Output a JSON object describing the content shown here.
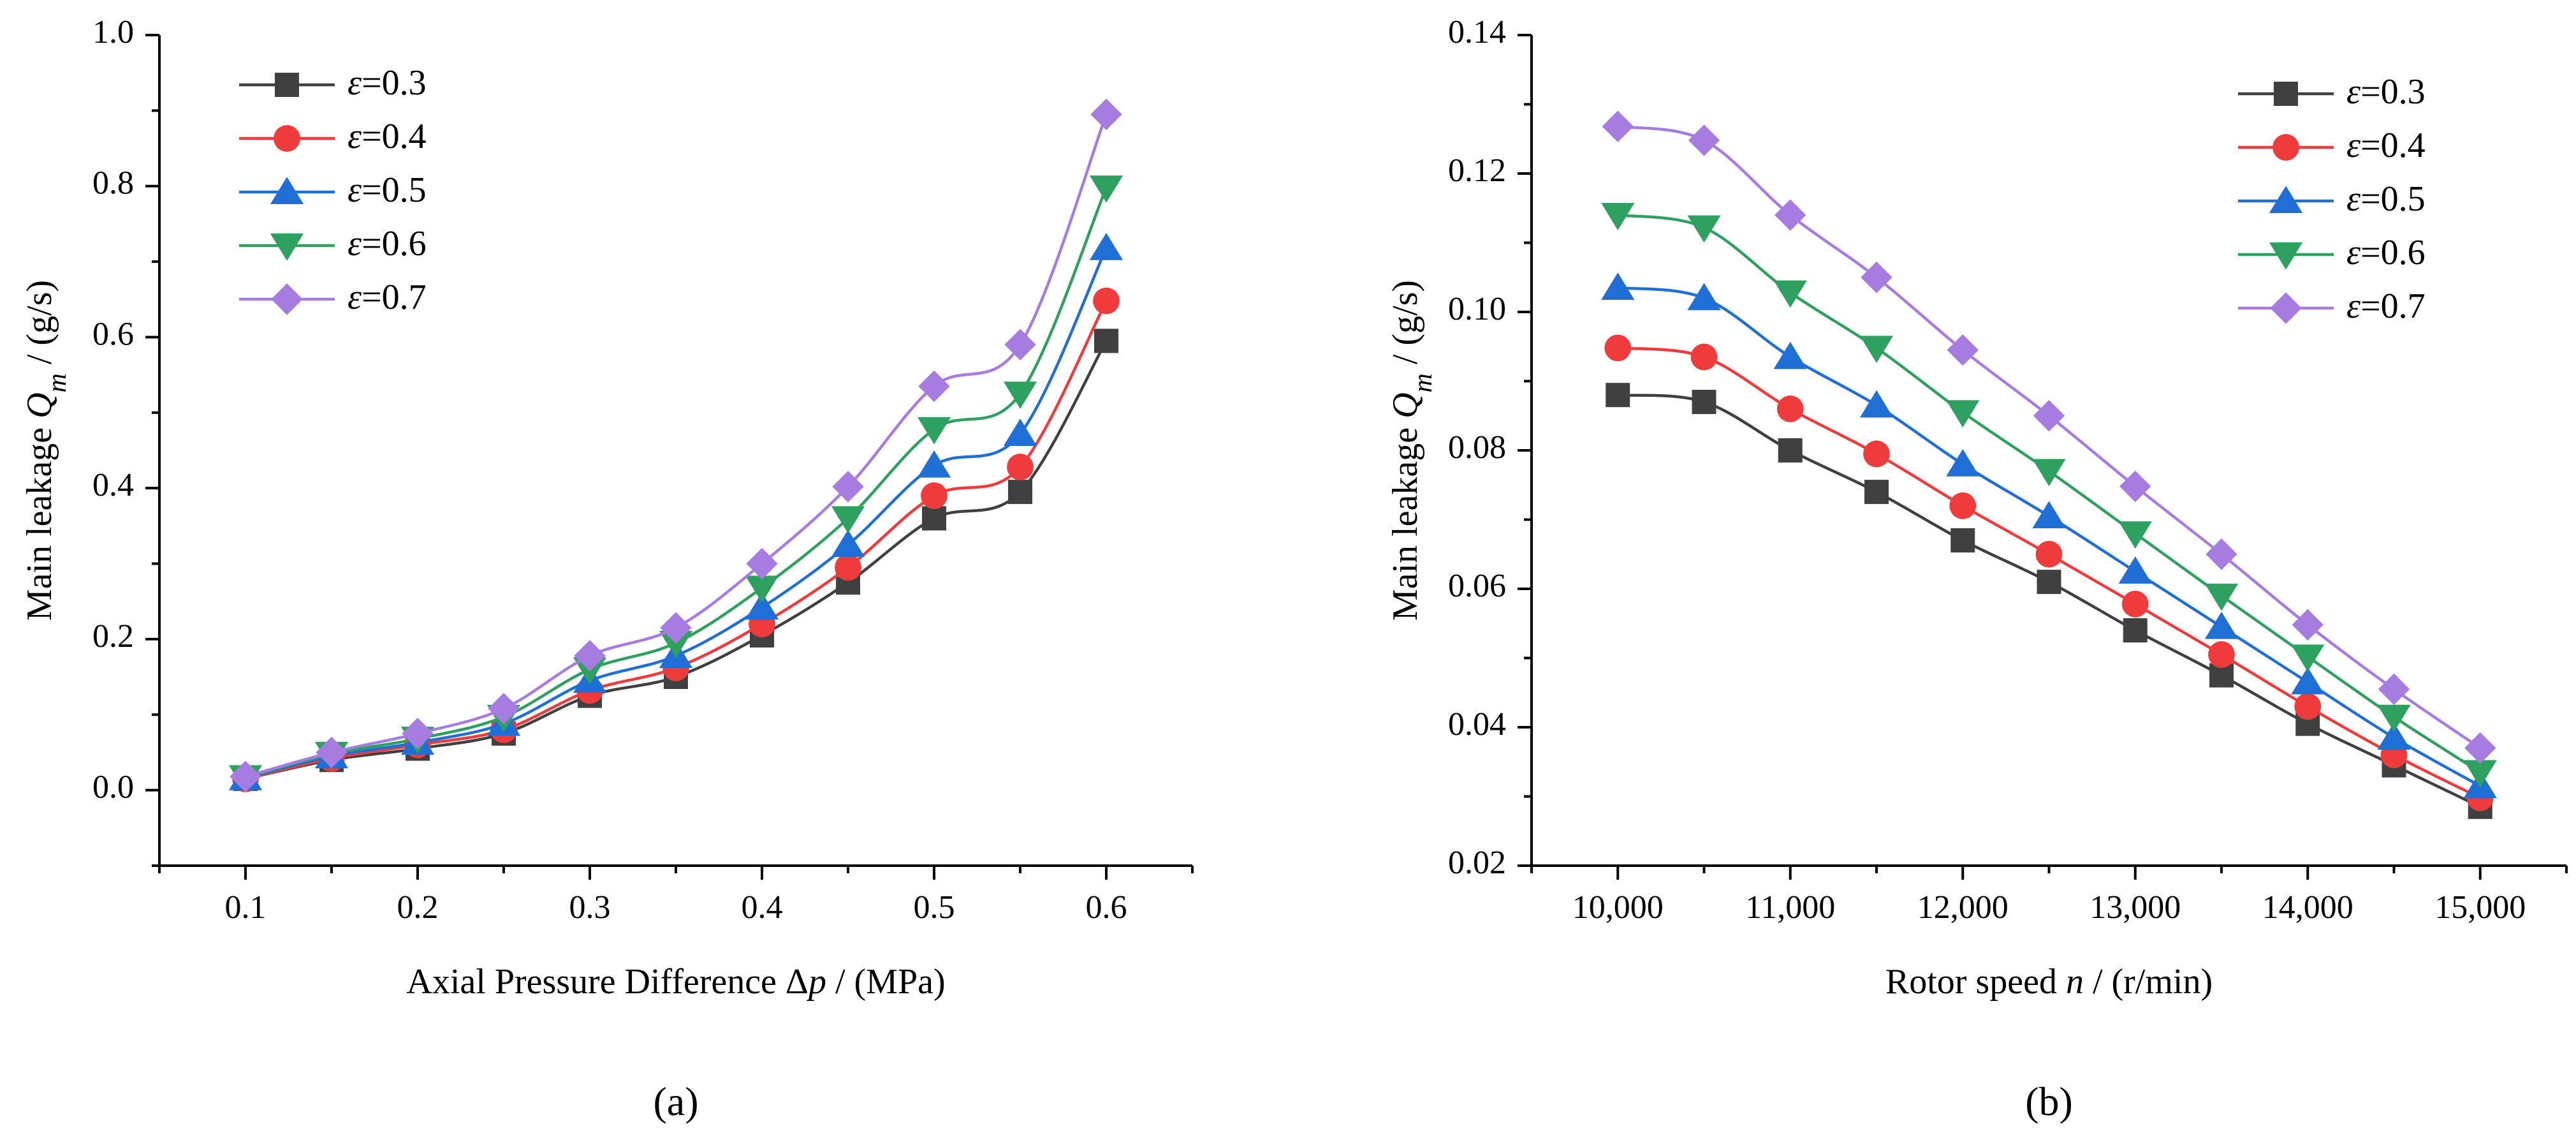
{
  "figure": {
    "series_colors": {
      "ε=0.3": "#404040",
      "ε=0.4": "#ef3b3b",
      "ε=0.5": "#1f6fd6",
      "ε=0.6": "#2ea05f",
      "ε=0.7": "#a77ce0"
    },
    "series_markers": {
      "ε=0.3": "square",
      "ε=0.4": "circle",
      "ε=0.5": "triangle-up",
      "ε=0.6": "triangle-down",
      "ε=0.7": "diamond"
    }
  },
  "chart_data": [
    {
      "id": "a",
      "type": "line",
      "panel_label": "(a)",
      "title": "",
      "xlabel": "Axial Pressure Difference Δp / (MPa)",
      "ylabel": "Main leakage Qm / (g/s)",
      "xlim": [
        0.05,
        0.65
      ],
      "ylim": [
        -0.1,
        1.0
      ],
      "xticks": [
        0.1,
        0.2,
        0.3,
        0.4,
        0.5,
        0.6
      ],
      "xtick_labels": [
        "0.1",
        "0.2",
        "0.3",
        "0.4",
        "0.5",
        "0.6"
      ],
      "yticks": [
        0.0,
        0.2,
        0.4,
        0.6,
        0.8,
        1.0
      ],
      "ytick_labels": [
        "0.0",
        "0.2",
        "0.4",
        "0.6",
        "0.8",
        "1.0"
      ],
      "legend_position": "top-left",
      "grid": false,
      "x": [
        0.1,
        0.15,
        0.2,
        0.25,
        0.3,
        0.35,
        0.4,
        0.45,
        0.5,
        0.55,
        0.6
      ],
      "series": [
        {
          "name": "ε=0.3",
          "values": [
            0.015,
            0.04,
            0.055,
            0.075,
            0.125,
            0.15,
            0.205,
            0.275,
            0.36,
            0.395,
            0.595
          ]
        },
        {
          "name": "ε=0.4",
          "values": [
            0.015,
            0.042,
            0.06,
            0.08,
            0.132,
            0.162,
            0.22,
            0.295,
            0.39,
            0.428,
            0.648
          ]
        },
        {
          "name": "ε=0.5",
          "values": [
            0.016,
            0.045,
            0.063,
            0.088,
            0.145,
            0.178,
            0.242,
            0.325,
            0.43,
            0.472,
            0.718
          ]
        },
        {
          "name": "ε=0.6",
          "values": [
            0.017,
            0.048,
            0.068,
            0.097,
            0.16,
            0.195,
            0.268,
            0.36,
            0.478,
            0.525,
            0.798
          ]
        },
        {
          "name": "ε=0.7",
          "values": [
            0.018,
            0.05,
            0.075,
            0.108,
            0.178,
            0.215,
            0.3,
            0.402,
            0.535,
            0.59,
            0.895
          ]
        }
      ]
    },
    {
      "id": "b",
      "type": "line",
      "panel_label": "(b)",
      "title": "",
      "xlabel": "Rotor speed n / (r/min)",
      "ylabel": "Main leakage Qm / (g/s)",
      "xlim": [
        9500,
        15500
      ],
      "ylim": [
        0.02,
        0.14
      ],
      "xticks": [
        10000,
        11000,
        12000,
        13000,
        14000,
        15000
      ],
      "xtick_labels": [
        "10,000",
        "11,000",
        "12,000",
        "13,000",
        "14,000",
        "15,000"
      ],
      "yticks": [
        0.02,
        0.04,
        0.06,
        0.08,
        0.1,
        0.12,
        0.14
      ],
      "ytick_labels": [
        "0.02",
        "0.04",
        "0.06",
        "0.08",
        "0.10",
        "0.12",
        "0.14"
      ],
      "legend_position": "top-right",
      "grid": false,
      "x": [
        10000,
        10500,
        11000,
        11500,
        12000,
        12500,
        13000,
        13500,
        14000,
        14500,
        15000
      ],
      "series": [
        {
          "name": "ε=0.3",
          "values": [
            0.088,
            0.087,
            0.08,
            0.074,
            0.067,
            0.061,
            0.054,
            0.0475,
            0.0405,
            0.0345,
            0.0285
          ]
        },
        {
          "name": "ε=0.4",
          "values": [
            0.0948,
            0.0935,
            0.086,
            0.0795,
            0.072,
            0.065,
            0.0578,
            0.0505,
            0.043,
            0.036,
            0.0298
          ]
        },
        {
          "name": "ε=0.5",
          "values": [
            0.1035,
            0.102,
            0.0935,
            0.0865,
            0.078,
            0.0705,
            0.0625,
            0.0545,
            0.0465,
            0.0385,
            0.0315
          ]
        },
        {
          "name": "ε=0.6",
          "values": [
            0.114,
            0.1122,
            0.1028,
            0.0948,
            0.0855,
            0.077,
            0.068,
            0.059,
            0.0502,
            0.0415,
            0.0335
          ]
        },
        {
          "name": "ε=0.7",
          "values": [
            0.1268,
            0.1248,
            0.114,
            0.105,
            0.0945,
            0.085,
            0.0748,
            0.065,
            0.0548,
            0.0455,
            0.037
          ]
        }
      ]
    }
  ]
}
